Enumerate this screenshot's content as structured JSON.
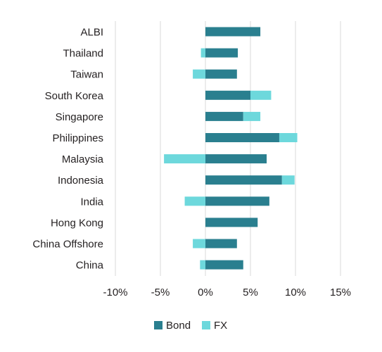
{
  "chart_data": {
    "type": "bar",
    "orientation": "horizontal",
    "stacked": true,
    "categories": [
      "ALBI",
      "Thailand",
      "Taiwan",
      "South Korea",
      "Singapore",
      "Philippines",
      "Malaysia",
      "Indonesia",
      "India",
      "Hong Kong",
      "China Offshore",
      "China"
    ],
    "series": [
      {
        "name": "Bond",
        "color": "#2a7f8f",
        "values": [
          6.1,
          3.6,
          3.5,
          5.0,
          4.2,
          8.2,
          6.8,
          8.5,
          7.1,
          5.8,
          3.5,
          4.2
        ]
      },
      {
        "name": "FX",
        "color": "#6dd8dc",
        "values": [
          0.0,
          -0.5,
          -1.4,
          2.3,
          1.9,
          2.0,
          -4.6,
          1.4,
          -2.3,
          0.0,
          -1.4,
          -0.6
        ]
      }
    ],
    "xlim": [
      -10,
      15
    ],
    "xticks": [
      "-10%",
      "-5%",
      "0%",
      "5%",
      "10%",
      "15%"
    ],
    "grid": true,
    "legend_position": "bottom"
  }
}
